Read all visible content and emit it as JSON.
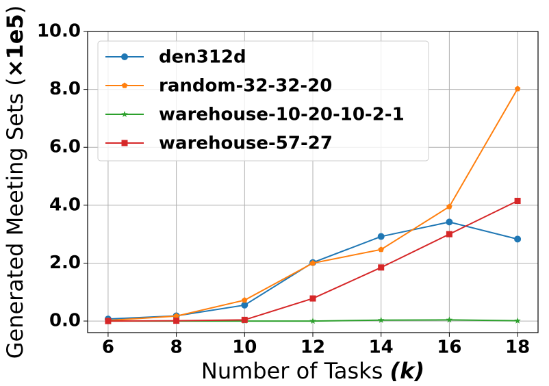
{
  "chart_data": {
    "type": "line",
    "x_label": [
      "Number of Tasks ",
      "(k)"
    ],
    "y_label": [
      "Generated Meeting Sets (",
      "×1e5",
      ")"
    ],
    "x": [
      6,
      8,
      10,
      12,
      14,
      16,
      18
    ],
    "xlim": [
      5.4,
      18.6
    ],
    "xticks": [
      6,
      8,
      10,
      12,
      14,
      16,
      18
    ],
    "ylim": [
      -0.4,
      10.0
    ],
    "yticks": [
      {
        "value": 0,
        "label": "0.0"
      },
      {
        "value": 2,
        "label": "2.0"
      },
      {
        "value": 4,
        "label": "4.0"
      },
      {
        "value": 6,
        "label": "6.0"
      },
      {
        "value": 8,
        "label": "8.0"
      },
      {
        "value": 10,
        "label": "10.0"
      }
    ],
    "grid": true,
    "legend": "upper-left",
    "series": [
      {
        "name": "den312d",
        "color": "#1f77b4",
        "marker": "circle",
        "values": [
          0.07,
          0.18,
          0.55,
          2.02,
          2.92,
          3.42,
          2.83
        ]
      },
      {
        "name": "random-32-32-20",
        "color": "#ff7f0e",
        "marker": "pentagon",
        "values": [
          0.02,
          0.17,
          0.72,
          2.0,
          2.47,
          3.95,
          8.02
        ]
      },
      {
        "name": "warehouse-10-20-10-2-1",
        "color": "#2ca02c",
        "marker": "star",
        "values": [
          0,
          0,
          0,
          0,
          0.03,
          0.04,
          0.01
        ]
      },
      {
        "name": "warehouse-57-27",
        "color": "#d62728",
        "marker": "square",
        "values": [
          0,
          0.01,
          0.04,
          0.78,
          1.85,
          3.0,
          4.15
        ]
      }
    ]
  }
}
